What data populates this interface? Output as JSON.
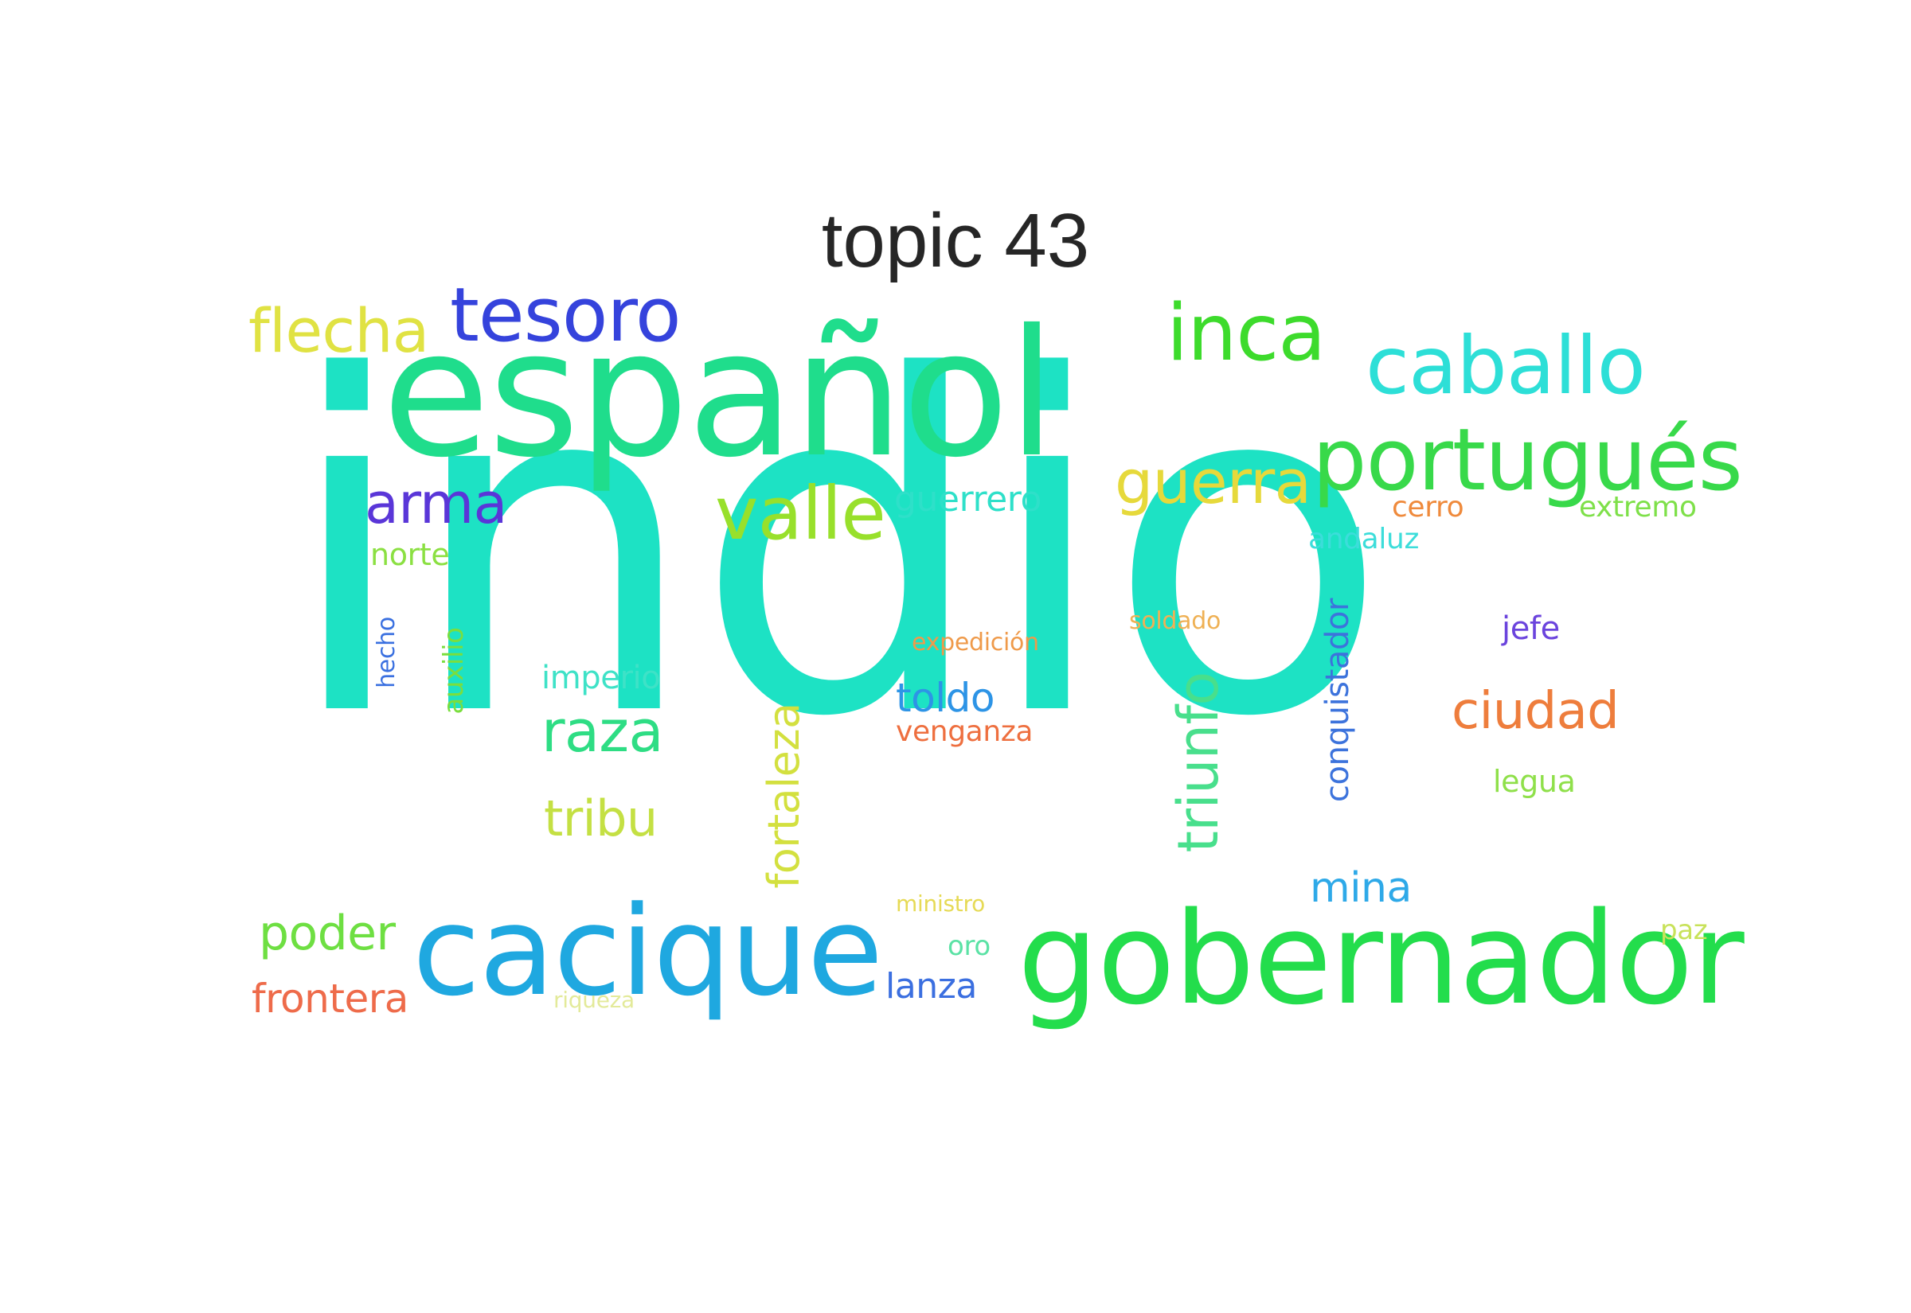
{
  "title": "topic 43",
  "words": [
    {
      "text": "indio",
      "color": "#1de2c4"
    },
    {
      "text": "español",
      "color": "#1fdd8c"
    },
    {
      "text": "gobernador",
      "color": "#23dd4c"
    },
    {
      "text": "cacique",
      "color": "#1fa8e0"
    },
    {
      "text": "portugués",
      "color": "#38d94a"
    },
    {
      "text": "caballo",
      "color": "#2ddfd7"
    },
    {
      "text": "tesoro",
      "color": "#3543dc"
    },
    {
      "text": "inca",
      "color": "#3ddb2c"
    },
    {
      "text": "flecha",
      "color": "#e0e243"
    },
    {
      "text": "valle",
      "color": "#98e02b"
    },
    {
      "text": "guerra",
      "color": "#e6d93b"
    },
    {
      "text": "arma",
      "color": "#5a36d8"
    },
    {
      "text": "triunfo",
      "color": "#48df8c"
    },
    {
      "text": "raza",
      "color": "#2edd84"
    },
    {
      "text": "tribu",
      "color": "#c4e043"
    },
    {
      "text": "poder",
      "color": "#6edf42"
    },
    {
      "text": "ciudad",
      "color": "#ee7d3c"
    },
    {
      "text": "fortaleza",
      "color": "#d3e03f"
    },
    {
      "text": "mina",
      "color": "#2ea9e8"
    },
    {
      "text": "frontera",
      "color": "#ee6b4a"
    },
    {
      "text": "toldo",
      "color": "#2d94e6"
    },
    {
      "text": "guerrero",
      "color": "#2ee0c9"
    },
    {
      "text": "conquistador",
      "color": "#3c73dc"
    },
    {
      "text": "lanza",
      "color": "#3b6fe0"
    },
    {
      "text": "cerro",
      "color": "#ef8a3c"
    },
    {
      "text": "extremo",
      "color": "#7ee049"
    },
    {
      "text": "andaluz",
      "color": "#3cddda"
    },
    {
      "text": "venganza",
      "color": "#ee6f3f"
    },
    {
      "text": "norte",
      "color": "#8be042"
    },
    {
      "text": "imperio",
      "color": "#3ee2c7"
    },
    {
      "text": "jefe",
      "color": "#6b44dd"
    },
    {
      "text": "legua",
      "color": "#8fe04a"
    },
    {
      "text": "auxilio",
      "color": "#7ade3e"
    },
    {
      "text": "hecho",
      "color": "#3a70e0"
    },
    {
      "text": "expedición",
      "color": "#ef9a4a"
    },
    {
      "text": "soldado",
      "color": "#efb155"
    },
    {
      "text": "ministro",
      "color": "#e6da55"
    },
    {
      "text": "oro",
      "color": "#5be2a5"
    },
    {
      "text": "paz",
      "color": "#c8e25a"
    },
    {
      "text": "riqueza",
      "color": "#e3ea9a"
    }
  ]
}
